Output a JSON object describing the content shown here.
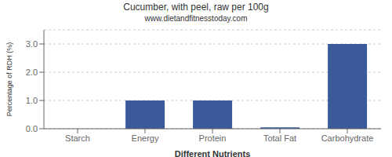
{
  "chart_data": {
    "type": "bar",
    "title": "Cucumber, with peel, raw per 100g",
    "subtitle": "www.dietandfitnesstoday.com",
    "xlabel": "Different Nutrients",
    "ylabel": "Percentage of RDH (%)",
    "categories": [
      "Starch",
      "Energy",
      "Protein",
      "Total Fat",
      "Carbohydrate"
    ],
    "values": [
      0.0,
      1.0,
      1.0,
      0.05,
      3.0
    ],
    "color": "#3a5a9c",
    "ylim": [
      0.0,
      3.5
    ],
    "yticks": [
      {
        "value": 0.0,
        "label": "0.0"
      },
      {
        "value": 1.0,
        "label": "1.0"
      },
      {
        "value": 2.0,
        "label": "2.0"
      },
      {
        "value": 3.0,
        "label": "3.0"
      }
    ],
    "grid": true
  }
}
